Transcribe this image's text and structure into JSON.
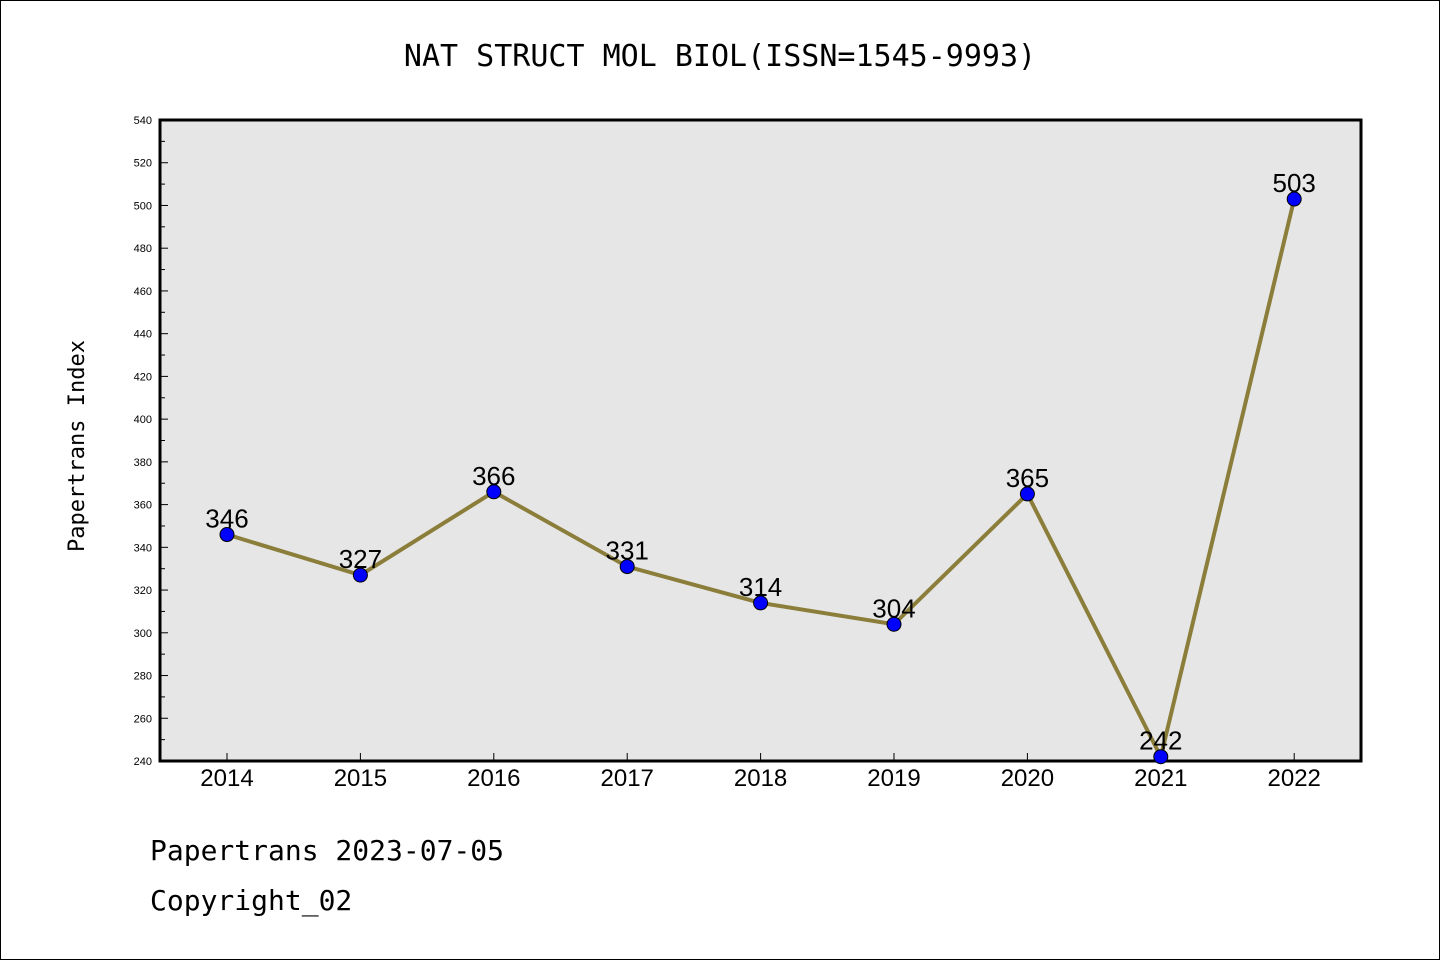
{
  "chart_data": {
    "type": "line",
    "title": "NAT STRUCT MOL BIOL(ISSN=1545-9993)",
    "ylabel": "Papertrans Index",
    "xlabel": "",
    "categories": [
      "2014",
      "2015",
      "2016",
      "2017",
      "2018",
      "2019",
      "2020",
      "2021",
      "2022"
    ],
    "series": [
      {
        "values": [
          346,
          327,
          366,
          331,
          314,
          304,
          365,
          242,
          503
        ]
      }
    ],
    "ylim": [
      240,
      540
    ],
    "yticks": [
      240,
      260,
      280,
      300,
      320,
      340,
      360,
      380,
      400,
      420,
      440,
      460,
      480,
      500,
      520,
      540
    ],
    "grid": false,
    "line_color": "#8b7d3a",
    "marker_color": "#0000ff",
    "plot_background": "#e6e6e6"
  },
  "footer": {
    "line1": "Papertrans 2023-07-05",
    "line2": "Copyright_02"
  }
}
